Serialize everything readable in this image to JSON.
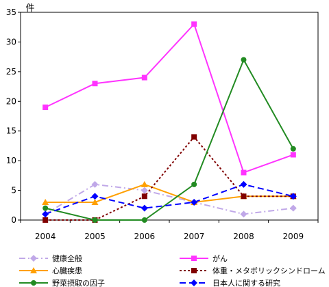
{
  "chart_data": {
    "type": "line",
    "unit_label": "件",
    "x": [
      "2004",
      "2005",
      "2006",
      "2007",
      "2008",
      "2009"
    ],
    "ylim": [
      0,
      35
    ],
    "yticks": [
      "0",
      "5",
      "10",
      "15",
      "20",
      "25",
      "30",
      "35"
    ],
    "grid": false,
    "legend_position": "bottom",
    "series": [
      {
        "name": "健康全般",
        "values": [
          1,
          6,
          5,
          3,
          1,
          2
        ],
        "color": "#C0A8E8",
        "dash": "dashdot",
        "marker": "diamond"
      },
      {
        "name": "がん",
        "values": [
          19,
          23,
          24,
          33,
          8,
          11
        ],
        "color": "#FF33FF",
        "dash": "solid",
        "marker": "square"
      },
      {
        "name": "心臓疾患",
        "values": [
          3,
          3,
          6,
          3,
          4,
          4
        ],
        "color": "#FFA000",
        "dash": "solid",
        "marker": "triangle"
      },
      {
        "name": "体重・メタボリックシンドローム",
        "values": [
          0,
          0,
          4,
          14,
          4,
          4
        ],
        "color": "#800000",
        "dash": "dot",
        "marker": "square"
      },
      {
        "name": "野菜摂取の因子",
        "values": [
          2,
          0,
          0,
          6,
          27,
          12
        ],
        "color": "#228B22",
        "dash": "solid",
        "marker": "circle"
      },
      {
        "name": "日本人に関する研究",
        "values": [
          1,
          4,
          2,
          3,
          6,
          4
        ],
        "color": "#0000FF",
        "dash": "dash",
        "marker": "diamond"
      }
    ]
  }
}
